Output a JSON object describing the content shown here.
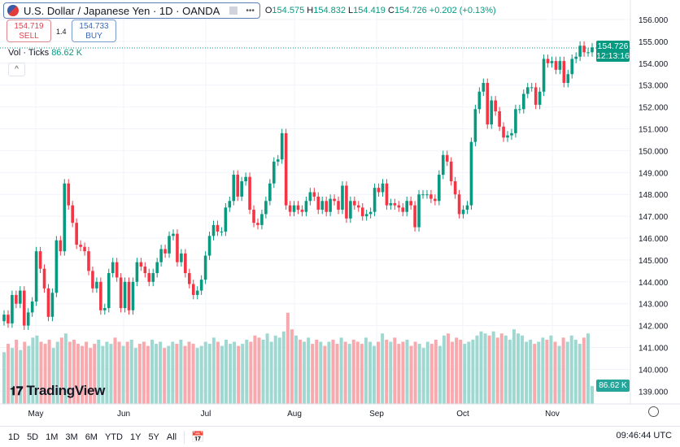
{
  "header": {
    "symbol_title": "U.S. Dollar / Japanese Yen · 1D · OANDA",
    "more": "•••",
    "ohlc": {
      "o_label": "O",
      "o": "154.575",
      "h_label": "H",
      "h": "154.832",
      "l_label": "L",
      "l": "154.419",
      "c_label": "C",
      "c": "154.726",
      "change": "+0.202 (+0.13%)"
    }
  },
  "trade": {
    "sell_price": "154.719",
    "sell_label": "SELL",
    "spread": "1.4",
    "buy_price": "154.733",
    "buy_label": "BUY"
  },
  "volume_legend": {
    "label": "Vol · Ticks",
    "value": "86.62 K"
  },
  "price_label": {
    "price": "154.726",
    "countdown": "12:13:16"
  },
  "volume_label": "86.62 K",
  "logo": "TradingView",
  "toolbar": {
    "ranges": [
      "1D",
      "5D",
      "1M",
      "3M",
      "6M",
      "YTD",
      "1Y",
      "5Y",
      "All"
    ],
    "clock": "09:46:44 UTC"
  },
  "colors": {
    "up": "#089981",
    "down": "#f23645",
    "vol_up": "#9fd8d1",
    "vol_down": "#f7a9ae"
  },
  "chart_data": {
    "type": "candlestick",
    "y_ticks": [
      "156.000",
      "155.000",
      "154.000",
      "153.000",
      "152.000",
      "151.000",
      "150.000",
      "149.000",
      "148.000",
      "147.000",
      "146.000",
      "145.000",
      "144.000",
      "143.000",
      "142.000",
      "141.000",
      "140.000",
      "139.000"
    ],
    "ylim": [
      138.9,
      156.9
    ],
    "x_ticks": [
      "May",
      "Jun",
      "Jul",
      "Aug",
      "Sep",
      "Oct",
      "Nov"
    ],
    "closes": [
      142.5,
      142.1,
      143.4,
      143.0,
      143.6,
      142.0,
      142.6,
      143.1,
      145.4,
      144.6,
      143.7,
      142.4,
      143.5,
      145.9,
      145.4,
      148.5,
      147.5,
      146.7,
      145.7,
      145.6,
      145.4,
      144.5,
      143.7,
      144.0,
      142.7,
      142.8,
      144.4,
      144.9,
      144.2,
      142.8,
      144.0,
      142.7,
      144.0,
      144.9,
      144.7,
      144.4,
      144.0,
      144.4,
      144.9,
      145.5,
      145.3,
      146.1,
      146.2,
      144.9,
      145.3,
      144.4,
      143.9,
      143.4,
      143.6,
      144.1,
      145.2,
      146.1,
      146.6,
      146.3,
      146.3,
      147.4,
      147.7,
      148.9,
      147.9,
      148.6,
      148.8,
      147.3,
      146.7,
      146.6,
      147.1,
      147.7,
      148.5,
      149.5,
      149.6,
      150.8,
      147.5,
      147.2,
      147.5,
      147.3,
      147.2,
      147.7,
      148.1,
      147.9,
      147.3,
      147.7,
      147.2,
      147.8,
      147.7,
      147.3,
      148.4,
      146.9,
      147.7,
      147.5,
      147.4,
      147.0,
      147.1,
      147.2,
      148.3,
      148.1,
      148.5,
      147.5,
      147.6,
      147.5,
      147.4,
      147.2,
      147.7,
      147.5,
      146.5,
      148.0,
      148.0,
      148.0,
      147.8,
      147.7,
      148.9,
      149.8,
      149.5,
      148.6,
      148.0,
      147.1,
      147.3,
      147.5,
      150.4,
      151.9,
      152.7,
      153.1,
      151.2,
      152.3,
      151.8,
      151.1,
      150.6,
      150.7,
      150.8,
      151.9,
      151.9,
      152.6,
      152.9,
      152.9,
      152.1,
      152.7,
      154.2,
      154.0,
      154.1,
      153.7,
      154.1,
      153.1,
      153.5,
      154.2,
      154.3,
      154.8,
      154.5,
      154.5,
      154.726
    ],
    "volumes_k": [
      250,
      290,
      270,
      310,
      260,
      300,
      280,
      320,
      330,
      300,
      290,
      310,
      270,
      300,
      320,
      340,
      300,
      310,
      290,
      280,
      300,
      270,
      290,
      310,
      280,
      300,
      290,
      320,
      300,
      280,
      300,
      310,
      270,
      290,
      300,
      280,
      310,
      290,
      300,
      270,
      280,
      300,
      290,
      310,
      280,
      300,
      290,
      270,
      280,
      300,
      290,
      320,
      300,
      280,
      310,
      290,
      300,
      280,
      290,
      310,
      300,
      330,
      320,
      310,
      340,
      300,
      330,
      320,
      350,
      440,
      360,
      330,
      310,
      300,
      320,
      290,
      310,
      300,
      280,
      300,
      310,
      290,
      320,
      300,
      290,
      310,
      300,
      290,
      320,
      300,
      280,
      300,
      340,
      310,
      300,
      320,
      290,
      300,
      310,
      280,
      300,
      290,
      270,
      300,
      290,
      310,
      280,
      330,
      340,
      300,
      320,
      310,
      290,
      300,
      310,
      330,
      350,
      340,
      330,
      350,
      320,
      340,
      330,
      310,
      360,
      340,
      330,
      300,
      310,
      290,
      300,
      320,
      310,
      330,
      300,
      280,
      320,
      300,
      330,
      310,
      290,
      320,
      340,
      86.62
    ]
  }
}
